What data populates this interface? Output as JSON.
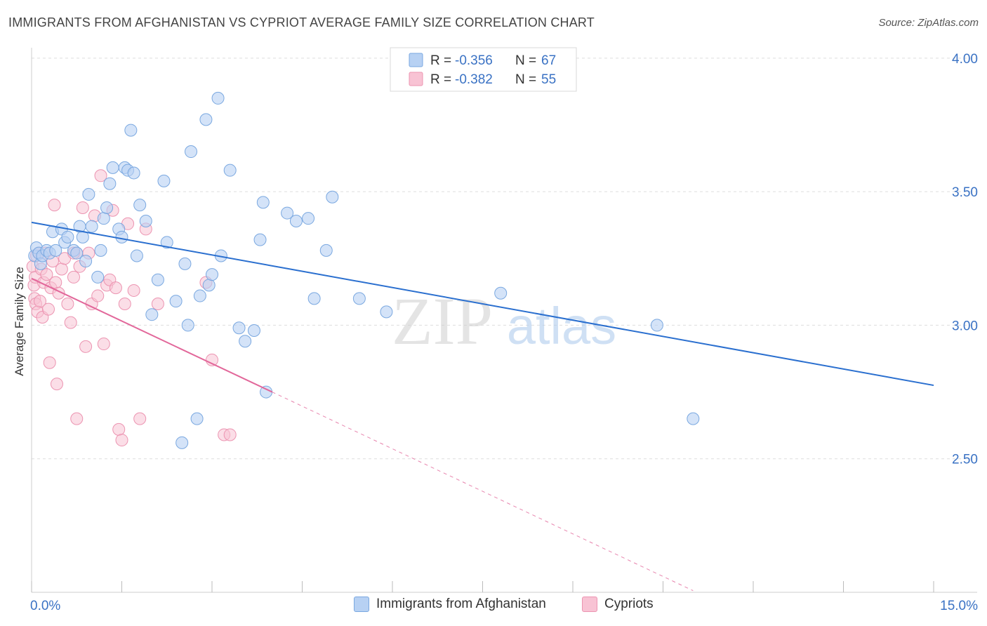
{
  "title": "IMMIGRANTS FROM AFGHANISTAN VS CYPRIOT AVERAGE FAMILY SIZE CORRELATION CHART",
  "source": "Source: ZipAtlas.com",
  "watermark": {
    "zip": "ZIP",
    "atlas": "atlas"
  },
  "legend_top": [
    {
      "r_label": "R =",
      "r_value": "-0.356",
      "n_label": "N =",
      "n_value": "67"
    },
    {
      "r_label": "R =",
      "r_value": "-0.382",
      "n_label": "N =",
      "n_value": "55"
    }
  ],
  "legend_bottom": [
    "Immigrants from Afghanistan",
    "Cypriots"
  ],
  "colors": {
    "blue_fill": "#b7d1f3",
    "blue_stroke": "#7aa8e0",
    "blue_line": "#2a6fcf",
    "pink_fill": "#f8c3d4",
    "pink_stroke": "#ec94b1",
    "pink_line": "#e2679a",
    "axis_text": "#3a72c4",
    "grid": "#dddddd"
  },
  "chart_data": {
    "type": "scatter",
    "title": "IMMIGRANTS FROM AFGHANISTAN VS CYPRIOT AVERAGE FAMILY SIZE CORRELATION CHART",
    "xlabel": "",
    "ylabel": "Average Family Size",
    "xlim": [
      0,
      15
    ],
    "ylim": [
      2.0,
      4.06
    ],
    "x_tick_labels": [
      "0.0%",
      "15.0%"
    ],
    "y_ticks": [
      2.5,
      3.0,
      3.5,
      4.0
    ],
    "y_tick_labels": [
      "2.50",
      "3.00",
      "3.50",
      "4.00"
    ],
    "series": [
      {
        "name": "Immigrants from Afghanistan",
        "R": -0.356,
        "N": 67,
        "trend": {
          "x0": 0.0,
          "y0": 3.385,
          "x1": 15.0,
          "y1": 2.775
        },
        "points": [
          [
            0.05,
            3.26
          ],
          [
            0.08,
            3.29
          ],
          [
            0.12,
            3.27
          ],
          [
            0.15,
            3.23
          ],
          [
            0.18,
            3.26
          ],
          [
            0.25,
            3.28
          ],
          [
            0.3,
            3.27
          ],
          [
            0.35,
            3.35
          ],
          [
            0.4,
            3.28
          ],
          [
            0.5,
            3.36
          ],
          [
            0.55,
            3.31
          ],
          [
            0.6,
            3.33
          ],
          [
            0.7,
            3.28
          ],
          [
            0.75,
            3.27
          ],
          [
            0.8,
            3.37
          ],
          [
            0.85,
            3.33
          ],
          [
            0.9,
            3.24
          ],
          [
            0.95,
            3.49
          ],
          [
            1.0,
            3.37
          ],
          [
            1.1,
            3.18
          ],
          [
            1.15,
            3.28
          ],
          [
            1.2,
            3.4
          ],
          [
            1.25,
            3.44
          ],
          [
            1.3,
            3.53
          ],
          [
            1.35,
            3.59
          ],
          [
            1.45,
            3.36
          ],
          [
            1.5,
            3.33
          ],
          [
            1.55,
            3.59
          ],
          [
            1.6,
            3.58
          ],
          [
            1.65,
            3.73
          ],
          [
            1.7,
            3.57
          ],
          [
            1.75,
            3.26
          ],
          [
            1.8,
            3.45
          ],
          [
            1.9,
            3.39
          ],
          [
            2.0,
            3.04
          ],
          [
            2.1,
            3.17
          ],
          [
            2.2,
            3.54
          ],
          [
            2.25,
            3.31
          ],
          [
            2.4,
            3.09
          ],
          [
            2.5,
            2.56
          ],
          [
            2.55,
            3.23
          ],
          [
            2.6,
            3.0
          ],
          [
            2.65,
            3.65
          ],
          [
            2.75,
            2.65
          ],
          [
            2.8,
            3.11
          ],
          [
            2.9,
            3.77
          ],
          [
            2.95,
            3.15
          ],
          [
            3.0,
            3.19
          ],
          [
            3.1,
            3.85
          ],
          [
            3.15,
            3.26
          ],
          [
            3.3,
            3.58
          ],
          [
            3.45,
            2.99
          ],
          [
            3.55,
            2.94
          ],
          [
            3.7,
            2.98
          ],
          [
            3.8,
            3.32
          ],
          [
            3.85,
            3.46
          ],
          [
            3.9,
            2.75
          ],
          [
            4.25,
            3.42
          ],
          [
            4.4,
            3.39
          ],
          [
            4.6,
            3.4
          ],
          [
            4.7,
            3.1
          ],
          [
            4.9,
            3.28
          ],
          [
            5.0,
            3.48
          ],
          [
            5.45,
            3.1
          ],
          [
            5.9,
            3.05
          ],
          [
            7.8,
            3.12
          ],
          [
            10.4,
            3.0
          ],
          [
            11.0,
            2.65
          ]
        ]
      },
      {
        "name": "Cypriots",
        "R": -0.382,
        "N": 55,
        "trend": {
          "x0": 0.0,
          "y0": 3.175,
          "x1": 4.0,
          "y1": 2.75,
          "dash_to_x": 11.0
        },
        "points": [
          [
            0.02,
            3.22
          ],
          [
            0.04,
            3.15
          ],
          [
            0.05,
            3.1
          ],
          [
            0.06,
            3.18
          ],
          [
            0.07,
            3.08
          ],
          [
            0.08,
            3.26
          ],
          [
            0.1,
            3.05
          ],
          [
            0.12,
            3.27
          ],
          [
            0.14,
            3.09
          ],
          [
            0.16,
            3.21
          ],
          [
            0.18,
            3.03
          ],
          [
            0.2,
            3.16
          ],
          [
            0.22,
            3.27
          ],
          [
            0.25,
            3.19
          ],
          [
            0.28,
            3.06
          ],
          [
            0.3,
            2.86
          ],
          [
            0.32,
            3.14
          ],
          [
            0.35,
            3.24
          ],
          [
            0.38,
            3.45
          ],
          [
            0.4,
            3.16
          ],
          [
            0.42,
            2.78
          ],
          [
            0.45,
            3.12
          ],
          [
            0.5,
            3.21
          ],
          [
            0.55,
            3.25
          ],
          [
            0.6,
            3.08
          ],
          [
            0.65,
            3.01
          ],
          [
            0.7,
            3.18
          ],
          [
            0.75,
            2.65
          ],
          [
            0.8,
            3.22
          ],
          [
            0.85,
            3.44
          ],
          [
            0.9,
            2.92
          ],
          [
            0.95,
            3.27
          ],
          [
            1.0,
            3.08
          ],
          [
            1.05,
            3.41
          ],
          [
            1.1,
            3.11
          ],
          [
            1.15,
            3.56
          ],
          [
            1.2,
            2.93
          ],
          [
            1.25,
            3.15
          ],
          [
            1.3,
            3.17
          ],
          [
            1.35,
            3.43
          ],
          [
            1.4,
            3.14
          ],
          [
            1.45,
            2.61
          ],
          [
            1.5,
            2.57
          ],
          [
            1.55,
            3.08
          ],
          [
            1.6,
            3.38
          ],
          [
            1.7,
            3.13
          ],
          [
            1.8,
            2.65
          ],
          [
            1.9,
            3.36
          ],
          [
            2.1,
            3.08
          ],
          [
            2.9,
            3.16
          ],
          [
            3.0,
            2.87
          ],
          [
            3.2,
            2.59
          ],
          [
            3.3,
            2.59
          ],
          [
            0.75,
            3.27
          ],
          [
            0.7,
            3.27
          ]
        ]
      }
    ]
  }
}
